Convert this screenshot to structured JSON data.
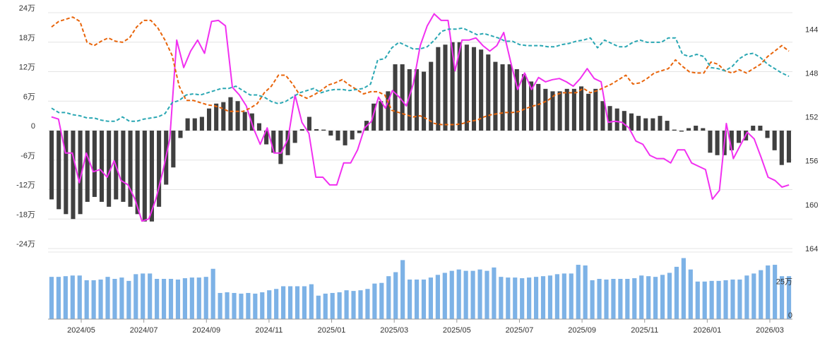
{
  "chart_data": [
    {
      "type": "bar+line",
      "left_axis": {
        "ticks": [
          "24万",
          "18万",
          "12万",
          "6万",
          "0",
          "-6万",
          "-12万",
          "-18万",
          "-24万"
        ],
        "values": [
          240000,
          180000,
          120000,
          60000,
          0,
          -60000,
          -120000,
          -180000,
          -240000
        ],
        "ylim": [
          -240000,
          240000
        ]
      },
      "right_axis": {
        "ticks": [
          "144",
          "148",
          "152",
          "156",
          "160",
          "164"
        ],
        "values": [
          144,
          148,
          152,
          156,
          160,
          164
        ],
        "ylim": [
          164,
          142.5
        ],
        "inverted": true
      },
      "x_ticks": [
        "2024/05",
        "2024/07",
        "2024/09",
        "2024/11",
        "2025/01",
        "2025/03",
        "2025/05",
        "2025/07",
        "2025/09",
        "2025/11",
        "2026/01",
        "2026/03"
      ],
      "series": [
        {
          "kind": "bar",
          "axis": "left",
          "color": "#404040",
          "values": [
            -140000,
            -160000,
            -170000,
            -180000,
            -170000,
            -145000,
            -135000,
            -145000,
            -155000,
            -140000,
            -145000,
            -155000,
            -170000,
            -185000,
            -185000,
            -155000,
            -110000,
            -75000,
            -15000,
            25000,
            25000,
            28000,
            45000,
            55000,
            58000,
            68000,
            60000,
            38000,
            35000,
            15000,
            -28000,
            -45000,
            -68000,
            -50000,
            -25000,
            3000,
            28000,
            3000,
            2000,
            -10000,
            -20000,
            -30000,
            -18000,
            -5000,
            20000,
            55000,
            60000,
            80000,
            135000,
            135000,
            125000,
            125000,
            120000,
            140000,
            170000,
            175000,
            180000,
            180000,
            175000,
            170000,
            165000,
            155000,
            140000,
            135000,
            135000,
            125000,
            115000,
            100000,
            95000,
            85000,
            80000,
            80000,
            85000,
            85000,
            90000,
            75000,
            85000,
            60000,
            50000,
            45000,
            40000,
            35000,
            30000,
            25000,
            25000,
            30000,
            20000,
            2000,
            -2000,
            5000,
            10000,
            5000,
            -45000,
            -50000,
            -50000,
            -40000,
            -25000,
            -20000,
            10000,
            10000,
            -15000,
            -40000,
            -70000,
            -65000
          ]
        },
        {
          "kind": "line",
          "axis": "right",
          "color": "#f130f0",
          "style": "solid",
          "values": [
            152.0,
            152.2,
            155.3,
            155.3,
            158.0,
            155.3,
            157.0,
            156.8,
            157.5,
            156.0,
            157.8,
            158.2,
            159.5,
            161.5,
            161.3,
            159.5,
            157.0,
            154.0,
            145.0,
            147.5,
            146.0,
            145.0,
            146.2,
            143.3,
            143.2,
            143.7,
            149.3,
            150.0,
            151.0,
            153.0,
            154.5,
            153.0,
            155.3,
            155.3,
            154.0,
            150.0,
            152.5,
            153.5,
            157.5,
            157.5,
            158.2,
            158.2,
            156.2,
            156.2,
            155.0,
            153.0,
            152.4,
            150.2,
            151.2,
            149.6,
            150.2,
            151.0,
            149.0,
            145.5,
            143.7,
            142.6,
            143.2,
            143.2,
            147.8,
            145.0,
            145.0,
            144.8,
            145.5,
            146.0,
            145.5,
            144.3,
            147.0,
            149.5,
            148.0,
            149.5,
            148.4,
            148.8,
            148.6,
            148.5,
            148.8,
            149.2,
            148.5,
            147.6,
            148.5,
            148.8,
            152.5,
            152.4,
            152.5,
            153.0,
            154.2,
            154.5,
            155.5,
            155.8,
            155.8,
            156.2,
            155.0,
            155.0,
            156.2,
            156.5,
            156.8,
            159.5,
            158.7,
            152.6,
            155.8,
            154.6,
            153.4,
            154.0,
            155.7,
            157.5,
            157.8,
            158.4,
            158.2
          ]
        },
        {
          "kind": "line",
          "axis": "right",
          "color": "#e8640a",
          "style": "dashed",
          "values": [
            143.8,
            143.3,
            143.1,
            142.9,
            143.3,
            145.2,
            145.5,
            145.1,
            144.8,
            145.1,
            145.2,
            144.8,
            143.8,
            143.2,
            143.2,
            143.9,
            145.0,
            146.4,
            149.2,
            150.5,
            150.5,
            150.7,
            150.9,
            151.0,
            151.2,
            151.5,
            151.5,
            151.5,
            151.2,
            150.8,
            149.8,
            149.2,
            148.2,
            148.2,
            149.0,
            150.0,
            150.3,
            150.0,
            149.6,
            149.1,
            148.9,
            148.6,
            149.1,
            149.5,
            149.9,
            149.7,
            149.7,
            150.0,
            151.4,
            151.6,
            151.8,
            152.0,
            151.9,
            152.2,
            152.6,
            152.7,
            152.7,
            152.7,
            152.6,
            152.4,
            152.3,
            152.0,
            151.8,
            151.7,
            151.6,
            151.6,
            151.5,
            151.2,
            151.0,
            150.8,
            150.5,
            150.0,
            149.8,
            149.8,
            149.8,
            149.4,
            149.8,
            149.6,
            149.3,
            149.0,
            148.6,
            148.2,
            149.0,
            148.9,
            148.5,
            148.0,
            147.8,
            147.6,
            146.8,
            147.4,
            147.9,
            148.0,
            148.0,
            147.0,
            147.2,
            147.8,
            148.0,
            147.7,
            148.0,
            147.6,
            147.2,
            146.5,
            146.0,
            145.5,
            146.0
          ]
        },
        {
          "kind": "line",
          "axis": "right",
          "color": "#2aa7b3",
          "style": "dashed",
          "values": [
            151.2,
            151.6,
            151.6,
            151.8,
            151.9,
            152.1,
            152.1,
            152.3,
            152.4,
            152.4,
            152.0,
            152.4,
            152.4,
            152.2,
            152.1,
            152.0,
            151.7,
            150.7,
            150.5,
            150.0,
            149.9,
            150.0,
            149.8,
            149.6,
            149.4,
            149.4,
            149.2,
            149.6,
            150.0,
            150.0,
            150.2,
            150.6,
            150.8,
            150.6,
            150.2,
            149.8,
            149.6,
            149.4,
            149.8,
            149.6,
            149.5,
            149.5,
            149.6,
            149.5,
            149.4,
            149.0,
            146.8,
            146.7,
            145.7,
            145.2,
            145.5,
            145.8,
            145.8,
            145.6,
            145.0,
            144.2,
            144.0,
            144.0,
            143.9,
            144.2,
            144.5,
            144.4,
            144.6,
            144.8,
            145.1,
            145.1,
            145.4,
            145.5,
            145.5,
            145.5,
            145.6,
            145.6,
            145.4,
            145.3,
            145.1,
            145.0,
            144.8,
            145.7,
            145.0,
            145.3,
            145.6,
            145.6,
            145.2,
            145.0,
            145.2,
            145.2,
            145.2,
            144.8,
            144.8,
            146.3,
            146.5,
            146.3,
            146.5,
            147.5,
            147.6,
            147.8,
            147.4,
            146.7,
            146.3,
            146.2,
            146.6,
            147.2,
            147.6,
            148.0,
            148.3
          ]
        }
      ]
    },
    {
      "type": "bar",
      "axis_ticks": [
        "25万",
        "0"
      ],
      "axis_values": [
        250000,
        0
      ],
      "ylim": [
        0,
        500000
      ],
      "series": [
        {
          "color": "#7db2e6",
          "values": [
            315000,
            315000,
            320000,
            325000,
            325000,
            290000,
            290000,
            295000,
            315000,
            300000,
            310000,
            285000,
            335000,
            340000,
            340000,
            300000,
            300000,
            300000,
            295000,
            305000,
            310000,
            310000,
            315000,
            375000,
            195000,
            200000,
            195000,
            190000,
            195000,
            190000,
            200000,
            215000,
            225000,
            245000,
            245000,
            245000,
            245000,
            260000,
            175000,
            190000,
            195000,
            200000,
            215000,
            210000,
            215000,
            225000,
            265000,
            270000,
            320000,
            350000,
            440000,
            295000,
            295000,
            295000,
            310000,
            330000,
            345000,
            360000,
            370000,
            360000,
            360000,
            370000,
            360000,
            385000,
            315000,
            310000,
            310000,
            305000,
            310000,
            315000,
            320000,
            325000,
            335000,
            340000,
            340000,
            405000,
            400000,
            290000,
            300000,
            295000,
            300000,
            300000,
            300000,
            305000,
            325000,
            320000,
            315000,
            330000,
            345000,
            390000,
            455000,
            370000,
            280000,
            280000,
            285000,
            285000,
            290000,
            295000,
            295000,
            325000,
            340000,
            365000,
            400000,
            405000,
            320000,
            320000
          ]
        }
      ]
    }
  ]
}
